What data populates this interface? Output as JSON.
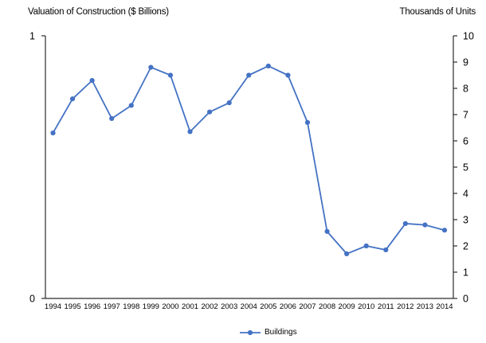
{
  "colors": {
    "series": "#4472C4",
    "axis": "#2b2b2b",
    "text": "#000000",
    "background": "#ffffff"
  },
  "legend": {
    "position": "bottom",
    "label": "Buildings"
  },
  "chart_data": {
    "type": "line",
    "title": "",
    "categories": [
      "1994",
      "1995",
      "1996",
      "1997",
      "1998",
      "1999",
      "2000",
      "2001",
      "2002",
      "2003",
      "2004",
      "2005",
      "2006",
      "2007",
      "2008",
      "2009",
      "2010",
      "2011",
      "2012",
      "2013",
      "2014"
    ],
    "series": [
      {
        "name": "Buildings",
        "axis": "right",
        "color": "#4472C4",
        "values": [
          6.3,
          7.6,
          8.3,
          6.85,
          7.35,
          8.8,
          8.5,
          6.35,
          7.1,
          7.45,
          8.5,
          8.85,
          8.5,
          6.7,
          2.55,
          1.7,
          2.0,
          1.85,
          2.85,
          2.8,
          2.6
        ]
      }
    ],
    "left_axis": {
      "label": "Valuation of Construction ($ Billions)",
      "min": 0,
      "max": 1,
      "tick_values": [
        0,
        1
      ],
      "tick_labels": [
        "0",
        "1"
      ]
    },
    "right_axis": {
      "label": "Thousands of Units",
      "min": 0,
      "max": 10,
      "tick_values": [
        0,
        1,
        2,
        3,
        4,
        5,
        6,
        7,
        8,
        9,
        10
      ],
      "tick_labels": [
        "0",
        "1",
        "2",
        "3",
        "4",
        "5",
        "6",
        "7",
        "8",
        "9",
        "10"
      ]
    },
    "xlabel": "",
    "ylabel": "",
    "grid": false,
    "legend_position": "bottom"
  }
}
